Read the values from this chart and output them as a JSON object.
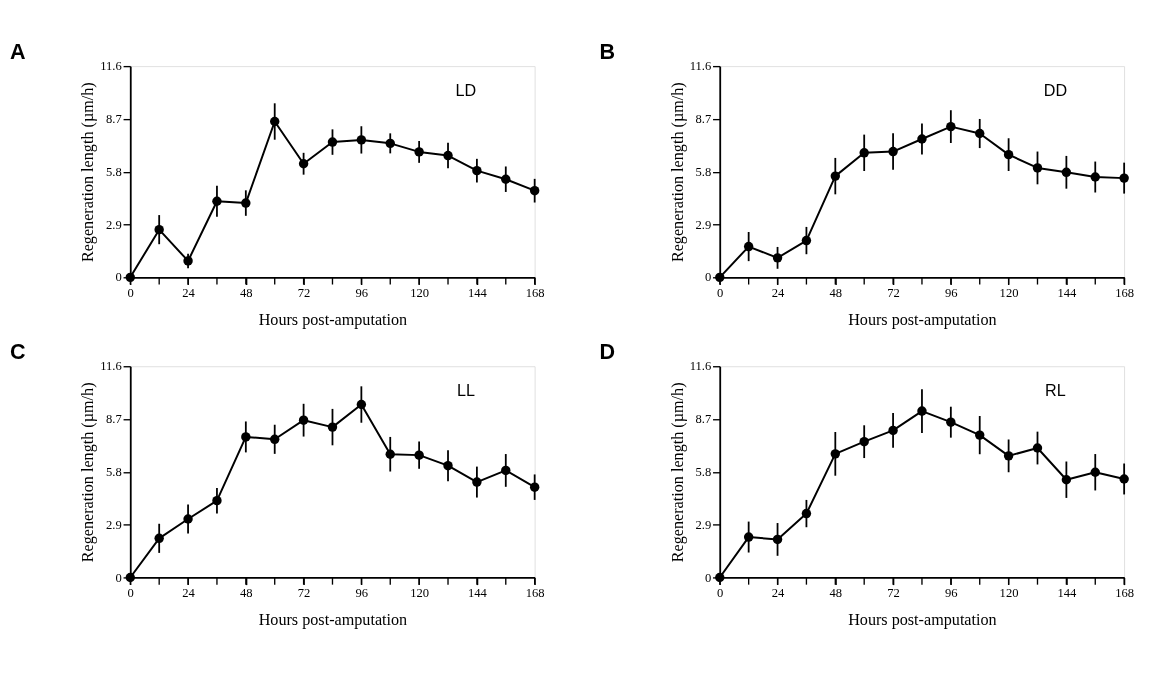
{
  "chart_data": [
    {
      "type": "line",
      "title": "A",
      "annotations": [
        "LD"
      ],
      "xlabel": "Hours post-amputation",
      "ylabel": "Regeneration length (µm/h)",
      "x": [
        0,
        12,
        24,
        36,
        48,
        60,
        72,
        84,
        96,
        108,
        120,
        132,
        144,
        156,
        168
      ],
      "series": [
        {
          "color": "#000000",
          "values": [
            0,
            2.62,
            0.9,
            4.18,
            4.08,
            8.56,
            6.24,
            7.43,
            7.55,
            7.36,
            6.89,
            6.69,
            5.86,
            5.39,
            4.76
          ],
          "errors": [
            null,
            0.8,
            0.4,
            0.85,
            0.7,
            1.0,
            0.6,
            0.7,
            0.75,
            0.55,
            0.6,
            0.7,
            0.65,
            0.7,
            0.65
          ]
        }
      ],
      "xlim": [
        0,
        168
      ],
      "xticks": [
        0,
        {
          "value": 12,
          "label": null
        },
        24,
        {
          "value": 36,
          "label": null
        },
        48,
        {
          "value": 60,
          "label": null
        },
        72,
        {
          "value": 84,
          "label": null
        },
        96,
        {
          "value": 108,
          "label": null
        },
        120,
        {
          "value": 132,
          "label": null
        },
        144,
        {
          "value": 156,
          "label": null
        },
        168
      ],
      "ylim": [
        0,
        11.6
      ],
      "yticks": [
        0,
        2.9,
        5.8,
        8.7,
        11.6
      ],
      "grid": false,
      "marker": "circle",
      "line_style": "solid"
    },
    {
      "type": "line",
      "title": "B",
      "annotations": [
        "DD"
      ],
      "xlabel": "Hours post-amputation",
      "ylabel": "Regeneration length (µm/h)",
      "x": [
        0,
        12,
        24,
        36,
        48,
        60,
        72,
        84,
        96,
        108,
        120,
        132,
        144,
        156,
        168
      ],
      "series": [
        {
          "color": "#000000",
          "values": [
            0,
            1.69,
            1.07,
            2.02,
            5.56,
            6.84,
            6.91,
            7.6,
            8.28,
            7.9,
            6.74,
            6.01,
            5.77,
            5.51,
            5.45
          ],
          "errors": [
            null,
            0.8,
            0.6,
            0.75,
            1.0,
            1.0,
            1.0,
            0.85,
            0.9,
            0.8,
            0.9,
            0.9,
            0.9,
            0.85,
            0.85
          ]
        }
      ],
      "xlim": [
        0,
        168
      ],
      "xticks": [
        0,
        {
          "value": 12,
          "label": null
        },
        24,
        {
          "value": 36,
          "label": null
        },
        48,
        {
          "value": 60,
          "label": null
        },
        72,
        {
          "value": 84,
          "label": null
        },
        96,
        {
          "value": 108,
          "label": null
        },
        120,
        {
          "value": 132,
          "label": null
        },
        144,
        {
          "value": 156,
          "label": null
        },
        168
      ],
      "ylim": [
        0,
        11.6
      ],
      "yticks": [
        0,
        2.9,
        5.8,
        8.7,
        11.6
      ],
      "grid": false,
      "marker": "circle",
      "line_style": "solid"
    },
    {
      "type": "line",
      "title": "C",
      "annotations": [
        "LL"
      ],
      "xlabel": "Hours post-amputation",
      "ylabel": "Regeneration length (µm/h)",
      "x": [
        0,
        12,
        24,
        36,
        48,
        60,
        72,
        84,
        96,
        108,
        120,
        132,
        144,
        156,
        168
      ],
      "series": [
        {
          "color": "#000000",
          "values": [
            0,
            2.15,
            3.21,
            4.22,
            7.72,
            7.59,
            8.64,
            8.26,
            9.5,
            6.77,
            6.72,
            6.14,
            5.24,
            5.88,
            4.96
          ],
          "errors": [
            null,
            0.8,
            0.8,
            0.7,
            0.85,
            0.8,
            0.9,
            1.0,
            1.0,
            0.95,
            0.75,
            0.85,
            0.85,
            0.9,
            0.7
          ]
        }
      ],
      "xlim": [
        0,
        168
      ],
      "xticks": [
        0,
        {
          "value": 12,
          "label": null
        },
        24,
        {
          "value": 36,
          "label": null
        },
        48,
        {
          "value": 60,
          "label": null
        },
        72,
        {
          "value": 84,
          "label": null
        },
        96,
        {
          "value": 108,
          "label": null
        },
        120,
        {
          "value": 132,
          "label": null
        },
        144,
        {
          "value": 156,
          "label": null
        },
        168
      ],
      "ylim": [
        0,
        11.6
      ],
      "yticks": [
        0,
        2.9,
        5.8,
        8.7,
        11.6
      ],
      "grid": false,
      "marker": "circle",
      "line_style": "solid"
    },
    {
      "type": "line",
      "title": "D",
      "annotations": [
        "RL"
      ],
      "xlabel": "Hours post-amputation",
      "ylabel": "Regeneration length (µm/h)",
      "x": [
        0,
        12,
        24,
        36,
        48,
        60,
        72,
        84,
        96,
        108,
        120,
        132,
        144,
        156,
        168
      ],
      "series": [
        {
          "color": "#000000",
          "values": [
            0,
            2.22,
            2.09,
            3.51,
            6.79,
            7.46,
            8.08,
            9.14,
            8.53,
            7.82,
            6.68,
            7.11,
            5.37,
            5.78,
            5.41
          ],
          "errors": [
            null,
            0.85,
            0.9,
            0.75,
            1.2,
            0.9,
            0.95,
            1.2,
            0.85,
            1.05,
            0.9,
            0.9,
            1.0,
            1.0,
            0.85
          ]
        }
      ],
      "xlim": [
        0,
        168
      ],
      "xticks": [
        0,
        {
          "value": 12,
          "label": null
        },
        24,
        {
          "value": 36,
          "label": null
        },
        48,
        {
          "value": 60,
          "label": null
        },
        72,
        {
          "value": 84,
          "label": null
        },
        96,
        {
          "value": 108,
          "label": null
        },
        120,
        {
          "value": 132,
          "label": null
        },
        144,
        {
          "value": 156,
          "label": null
        },
        168
      ],
      "ylim": [
        0,
        11.6
      ],
      "yticks": [
        0,
        2.9,
        5.8,
        8.7,
        11.6
      ],
      "grid": false,
      "marker": "circle",
      "line_style": "solid"
    }
  ]
}
